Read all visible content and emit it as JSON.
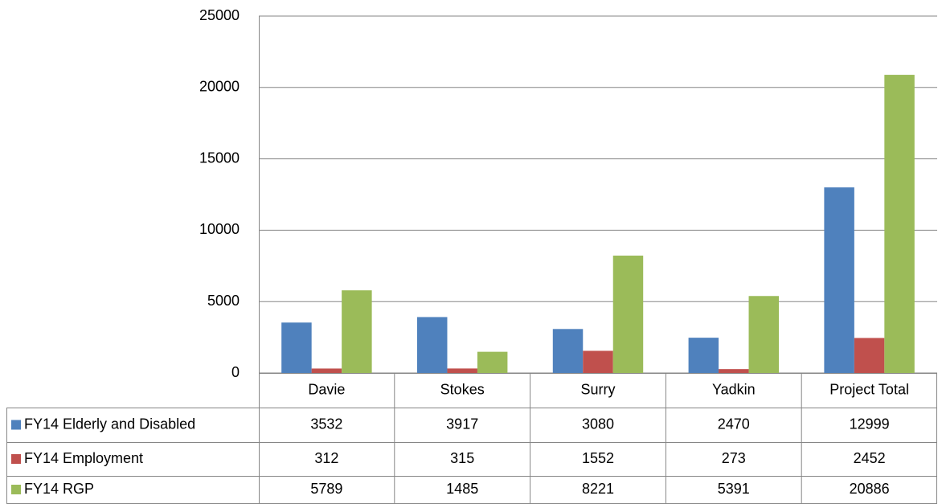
{
  "chart_data": {
    "type": "bar",
    "categories": [
      "Davie",
      "Stokes",
      "Surry",
      "Yadkin",
      "Project Total"
    ],
    "series": [
      {
        "name": "FY14 Elderly and Disabled",
        "color": "#4f81bd",
        "values": [
          3532,
          3917,
          3080,
          2470,
          12999
        ]
      },
      {
        "name": "FY14 Employment",
        "color": "#c0504d",
        "values": [
          312,
          315,
          1552,
          273,
          2452
        ]
      },
      {
        "name": "FY14 RGP",
        "color": "#9bbb59",
        "values": [
          5789,
          1485,
          8221,
          5391,
          20886
        ]
      }
    ],
    "ylim": [
      0,
      25000
    ],
    "yticks": [
      0,
      5000,
      10000,
      15000,
      20000,
      25000
    ],
    "grid": true
  }
}
